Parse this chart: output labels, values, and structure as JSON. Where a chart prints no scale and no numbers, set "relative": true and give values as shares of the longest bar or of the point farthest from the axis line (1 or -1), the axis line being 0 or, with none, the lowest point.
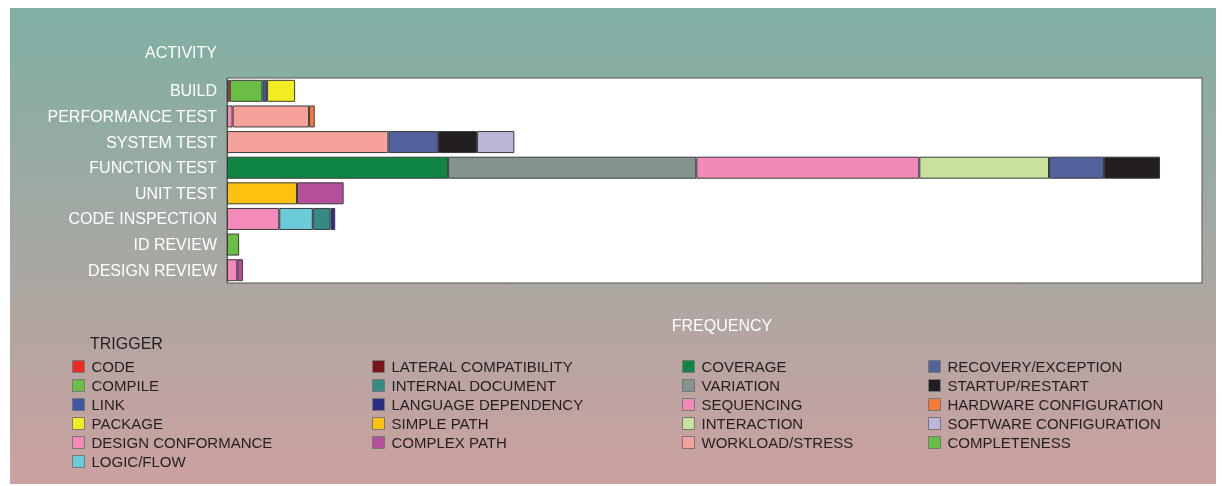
{
  "chart_data": {
    "type": "bar",
    "orientation": "horizontal",
    "stacked": true,
    "relative": true,
    "legend": "bottom",
    "ylabel": "ACTIVITY",
    "xlabel": "FREQUENCY",
    "legend_title": "TRIGGER",
    "categories": [
      "BUILD",
      "PERFORMANCE TEST",
      "SYSTEM TEST",
      "FUNCTION TEST",
      "UNIT TEST",
      "CODE INSPECTION",
      "ID REVIEW",
      "DESIGN REVIEW"
    ],
    "series": [
      {
        "name": "CODE",
        "color": "#ee2a24",
        "values": [
          0.003,
          null,
          null,
          null,
          null,
          null,
          null,
          null
        ]
      },
      {
        "name": "COMPILE",
        "color": "#6abd45",
        "values": [
          0.035,
          null,
          null,
          null,
          null,
          null,
          null,
          null
        ]
      },
      {
        "name": "LINK",
        "color": "#3f56a5",
        "values": [
          0.005,
          null,
          null,
          null,
          null,
          null,
          null,
          null
        ]
      },
      {
        "name": "PACKAGE",
        "color": "#f4ec22",
        "values": [
          0.03,
          null,
          null,
          null,
          null,
          null,
          null,
          null
        ]
      },
      {
        "name": "DESIGN CONFORMANCE",
        "color": "#f38ab9",
        "values": [
          null,
          0.006,
          null,
          null,
          null,
          0.056,
          null,
          0.011
        ]
      },
      {
        "name": "LOGIC/FLOW",
        "color": "#6ccbd9",
        "values": [
          null,
          null,
          null,
          null,
          null,
          0.036,
          null,
          null
        ]
      },
      {
        "name": "LATERAL COMPATIBILITY",
        "color": "#7d1416",
        "values": [
          null,
          null,
          null,
          null,
          null,
          null,
          null,
          null
        ]
      },
      {
        "name": "INTERNAL DOCUMENT",
        "color": "#378a84",
        "values": [
          null,
          null,
          null,
          null,
          null,
          0.019,
          null,
          null
        ]
      },
      {
        "name": "LANGUAGE DEPENDENCY",
        "color": "#2a2f83",
        "values": [
          null,
          null,
          null,
          null,
          null,
          0.005,
          null,
          null
        ]
      },
      {
        "name": "SIMPLE PATH",
        "color": "#fcc20f",
        "values": [
          null,
          null,
          null,
          null,
          0.075,
          null,
          null,
          null
        ]
      },
      {
        "name": "COMPLEX PATH",
        "color": "#b44f9c",
        "values": [
          null,
          null,
          null,
          null,
          0.05,
          null,
          null,
          0.006
        ]
      },
      {
        "name": "COVERAGE",
        "color": "#0f8644",
        "values": [
          null,
          null,
          null,
          0.237,
          null,
          null,
          null,
          null
        ]
      },
      {
        "name": "VARIATION",
        "color": "#84958f",
        "values": [
          null,
          null,
          null,
          0.266,
          null,
          null,
          null,
          null
        ]
      },
      {
        "name": "SEQUENCING",
        "color": "#f28ab8",
        "values": [
          null,
          null,
          null,
          0.239,
          null,
          null,
          null,
          null
        ]
      },
      {
        "name": "INTERACTION",
        "color": "#c8e19c",
        "values": [
          null,
          null,
          null,
          0.139,
          null,
          null,
          null,
          null
        ]
      },
      {
        "name": "WORKLOAD/STRESS",
        "color": "#f5a39a",
        "values": [
          null,
          0.082,
          0.173,
          null,
          null,
          null,
          null,
          null
        ]
      },
      {
        "name": "RECOVERY/EXCEPTION",
        "color": "#53619d",
        "values": [
          null,
          null,
          0.053,
          0.059,
          null,
          null,
          null,
          null
        ]
      },
      {
        "name": "STARTUP/RESTART",
        "color": "#231f20",
        "values": [
          null,
          null,
          0.042,
          0.06,
          null,
          null,
          null,
          null
        ]
      },
      {
        "name": "HARDWARE CONFIGURATION",
        "color": "#f47b3a",
        "values": [
          null,
          0.006,
          null,
          null,
          null,
          null,
          null,
          null
        ]
      },
      {
        "name": "SOFTWARE CONFIGURATION",
        "color": "#bdb6d9",
        "values": [
          null,
          null,
          0.04,
          null,
          null,
          null,
          null,
          null
        ]
      },
      {
        "name": "COMPLETENESS",
        "color": "#6abd45",
        "values": [
          null,
          null,
          null,
          null,
          null,
          null,
          0.013,
          null
        ]
      }
    ]
  }
}
